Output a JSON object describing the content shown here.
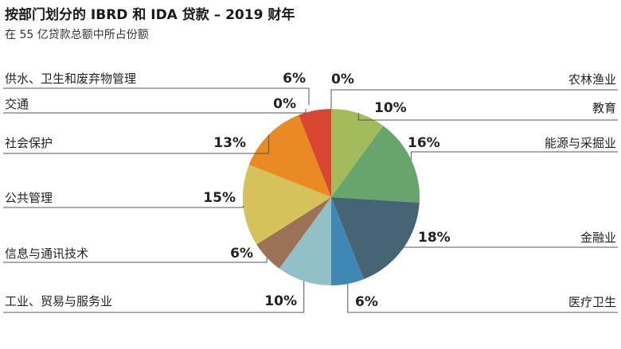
{
  "chart_data": {
    "type": "pie",
    "title": "按部门划分的 IBRD 和 IDA 贷款 – 2019 财年",
    "subtitle": "在 55 亿贷款总额中所占份额",
    "slices": [
      {
        "label": "农林渔业",
        "value": 0,
        "pct_label": "0%",
        "color": "#e3d5a6"
      },
      {
        "label": "教育",
        "value": 10,
        "pct_label": "10%",
        "color": "#a3bb5a"
      },
      {
        "label": "能源与采掘业",
        "value": 16,
        "pct_label": "16%",
        "color": "#67a56c"
      },
      {
        "label": "金融业",
        "value": 18,
        "pct_label": "18%",
        "color": "#456474"
      },
      {
        "label": "医疗卫生",
        "value": 6,
        "pct_label": "6%",
        "color": "#3f88b6"
      },
      {
        "label": "工业、贸易与服务业",
        "value": 10,
        "pct_label": "10%",
        "color": "#91c1c6"
      },
      {
        "label": "信息与通讯技术",
        "value": 6,
        "pct_label": "6%",
        "color": "#9c7256"
      },
      {
        "label": "公共管理",
        "value": 15,
        "pct_label": "15%",
        "color": "#d6c25b"
      },
      {
        "label": "社会保护",
        "value": 13,
        "pct_label": "13%",
        "color": "#ea8a22"
      },
      {
        "label": "交通",
        "value": 0,
        "pct_label": "0%",
        "color": "#c9b99b"
      },
      {
        "label": "供水、卫生和废弃物管理",
        "value": 6,
        "pct_label": "6%",
        "color": "#d94632"
      }
    ]
  }
}
